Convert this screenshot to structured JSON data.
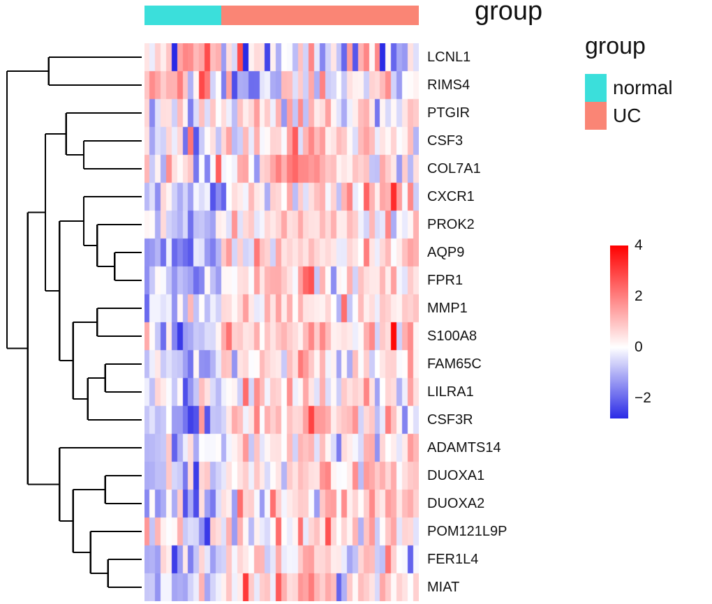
{
  "annotation": {
    "title": "group",
    "groups": [
      {
        "label": "normal",
        "color": "#3BDFDB",
        "count": 14
      },
      {
        "label": "UC",
        "color": "#FA8575",
        "count": 36
      }
    ]
  },
  "legend": {
    "title": "group",
    "items": [
      {
        "label": "normal",
        "color": "#3BDFDB"
      },
      {
        "label": "UC",
        "color": "#FA8575"
      }
    ]
  },
  "colorbar": {
    "ticks": [
      {
        "label": "4",
        "value": 4
      },
      {
        "label": "2",
        "value": 2
      },
      {
        "label": "0",
        "value": 0
      },
      {
        "label": "−2",
        "value": -2
      }
    ],
    "low_color": "#2A2AE6",
    "mid_color": "#FFFFFF",
    "high_color": "#FF0000"
  },
  "chart_data": {
    "type": "heatmap",
    "title": "",
    "legend_position": "right",
    "genes": [
      "LCNL1",
      "RIMS4",
      "PTGIR",
      "CSF3",
      "COL7A1",
      "CXCR1",
      "PROK2",
      "AQP9",
      "FPR1",
      "MMP1",
      "S100A8",
      "FAM65C",
      "LILRA1",
      "CSF3R",
      "ADAMTS14",
      "DUOXA1",
      "DUOXA2",
      "POM121L9P",
      "FER1L4",
      "MIAT"
    ],
    "columns": {
      "normal": 14,
      "UC": 36
    },
    "scale": {
      "min": -2.8,
      "max": 4
    },
    "row_group_means": {
      "LCNL1": {
        "normal": 0.3,
        "UC": 0.0,
        "sd": 1.25
      },
      "RIMS4": {
        "normal": 0.55,
        "UC": -0.25,
        "sd": 1.0
      },
      "PTGIR": {
        "normal": -0.45,
        "UC": 0.35,
        "sd": 0.8
      },
      "CSF3": {
        "normal": -0.35,
        "UC": 0.55,
        "sd": 1.1
      },
      "COL7A1": {
        "normal": -0.3,
        "UC": 0.5,
        "sd": 0.9
      },
      "CXCR1": {
        "normal": -0.55,
        "UC": 0.5,
        "sd": 0.85
      },
      "PROK2": {
        "normal": -0.75,
        "UC": 0.55,
        "sd": 0.8
      },
      "AQP9": {
        "normal": -0.95,
        "UC": 0.65,
        "sd": 0.75
      },
      "FPR1": {
        "normal": -0.95,
        "UC": 0.65,
        "sd": 0.7
      },
      "MMP1": {
        "normal": -0.8,
        "UC": 0.55,
        "sd": 0.8
      },
      "S100A8": {
        "normal": -0.85,
        "UC": 0.6,
        "sd": 0.85
      },
      "FAM65C": {
        "normal": -0.8,
        "UC": 0.55,
        "sd": 0.7
      },
      "LILRA1": {
        "normal": -0.8,
        "UC": 0.5,
        "sd": 0.7
      },
      "CSF3R": {
        "normal": -0.85,
        "UC": 0.6,
        "sd": 0.75
      },
      "ADAMTS14": {
        "normal": -0.35,
        "UC": 0.3,
        "sd": 0.75
      },
      "DUOXA1": {
        "normal": -0.85,
        "UC": 0.55,
        "sd": 0.8
      },
      "DUOXA2": {
        "normal": -1.05,
        "UC": 0.7,
        "sd": 0.85
      },
      "POM121L9P": {
        "normal": -0.55,
        "UC": 0.55,
        "sd": 0.85
      },
      "FER1L4": {
        "normal": -0.65,
        "UC": 0.5,
        "sd": 0.8
      },
      "MIAT": {
        "normal": -0.65,
        "UC": 0.5,
        "sd": 0.75
      }
    },
    "noise_sd": 0.75,
    "column_effect_sd": 0.45,
    "seed": 42,
    "row_dendrogram": {
      "merges": [
        {
          "id": "m1",
          "a": "LCNL1",
          "b": "RIMS4",
          "h": 0.69
        },
        {
          "id": "m2",
          "a": "CSF3",
          "b": "COL7A1",
          "h": 0.43
        },
        {
          "id": "m3",
          "a": "PTGIR",
          "b": "m2",
          "h": 0.56
        },
        {
          "id": "m4",
          "a": "AQP9",
          "b": "FPR1",
          "h": 0.2
        },
        {
          "id": "m5",
          "a": "PROK2",
          "b": "m4",
          "h": 0.33
        },
        {
          "id": "m6",
          "a": "CXCR1",
          "b": "m5",
          "h": 0.43
        },
        {
          "id": "m7",
          "a": "MMP1",
          "b": "S100A8",
          "h": 0.33
        },
        {
          "id": "m8",
          "a": "FAM65C",
          "b": "LILRA1",
          "h": 0.27
        },
        {
          "id": "m9",
          "a": "m8",
          "b": "CSF3R",
          "h": 0.4
        },
        {
          "id": "m10",
          "a": "m7",
          "b": "m9",
          "h": 0.51
        },
        {
          "id": "m11",
          "a": "m6",
          "b": "m10",
          "h": 0.61
        },
        {
          "id": "m12",
          "a": "m3",
          "b": "m11",
          "h": 0.715
        },
        {
          "id": "m13",
          "a": "DUOXA1",
          "b": "DUOXA2",
          "h": 0.27
        },
        {
          "id": "m14",
          "a": "FER1L4",
          "b": "MIAT",
          "h": 0.25
        },
        {
          "id": "m15",
          "a": "POM121L9P",
          "b": "m14",
          "h": 0.38
        },
        {
          "id": "m16",
          "a": "m13",
          "b": "m15",
          "h": 0.51
        },
        {
          "id": "m17",
          "a": "ADAMTS14",
          "b": "m16",
          "h": 0.61
        },
        {
          "id": "m18",
          "a": "m12",
          "b": "m17",
          "h": 0.845
        },
        {
          "id": "m19",
          "a": "m1",
          "b": "m18",
          "h": 1.0
        }
      ]
    }
  }
}
